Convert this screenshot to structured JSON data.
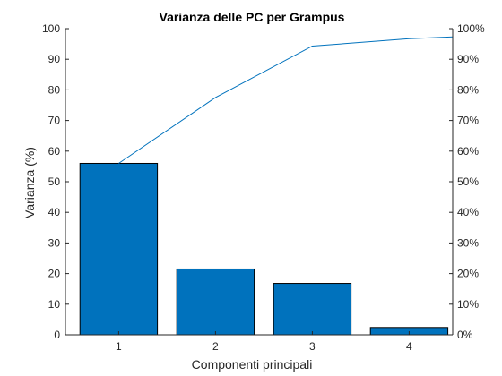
{
  "chart_data": {
    "type": "bar",
    "title": "Varianza delle PC per Grampus",
    "xlabel": "Componenti principali",
    "ylabel": "Varianza (%)",
    "categories": [
      "1",
      "2",
      "3",
      "4"
    ],
    "values": [
      56,
      21.5,
      16.8,
      2.4
    ],
    "ylim": [
      0,
      100
    ],
    "yticks": [
      "0",
      "10",
      "20",
      "30",
      "40",
      "50",
      "60",
      "70",
      "80",
      "90",
      "100"
    ],
    "y2lim": [
      0,
      100
    ],
    "y2ticks": [
      "0%",
      "10%",
      "20%",
      "30%",
      "40%",
      "50%",
      "60%",
      "70%",
      "80%",
      "90%",
      "100%"
    ],
    "cumulative": [
      56,
      77.5,
      94.3,
      96.7,
      97.3
    ],
    "cumulative_x": [
      1,
      2,
      3,
      4,
      4.45
    ],
    "colors": {
      "bar": "#0072BD",
      "line": "#0072BD"
    }
  }
}
